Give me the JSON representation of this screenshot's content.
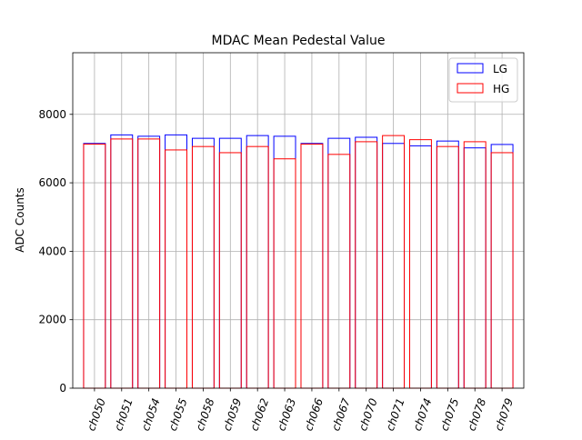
{
  "chart_data": {
    "type": "bar",
    "title": "MDAC Mean Pedestal Value",
    "xlabel": "",
    "ylabel": "ADC Counts",
    "ylim": [
      0,
      9800
    ],
    "yticks": [
      0,
      2000,
      4000,
      6000,
      8000
    ],
    "ytick_labels": [
      "0",
      "2000",
      "4000",
      "6000",
      "8000"
    ],
    "grid": true,
    "legend_position": "top-right",
    "categories": [
      "ch050",
      "ch051",
      "ch054",
      "ch055",
      "ch058",
      "ch059",
      "ch062",
      "ch063",
      "ch066",
      "ch067",
      "ch070",
      "ch071",
      "ch074",
      "ch075",
      "ch078",
      "ch079"
    ],
    "series": [
      {
        "name": "LG",
        "color": "#0000ff",
        "values": [
          7150,
          7400,
          7360,
          7400,
          7300,
          7300,
          7380,
          7360,
          7150,
          7300,
          7330,
          7150,
          7080,
          7220,
          7020,
          7120
        ]
      },
      {
        "name": "HG",
        "color": "#ff0000",
        "values": [
          7130,
          7280,
          7280,
          6960,
          7060,
          6880,
          7060,
          6700,
          7130,
          6830,
          7200,
          7380,
          7260,
          7060,
          7200,
          6880
        ]
      }
    ]
  }
}
